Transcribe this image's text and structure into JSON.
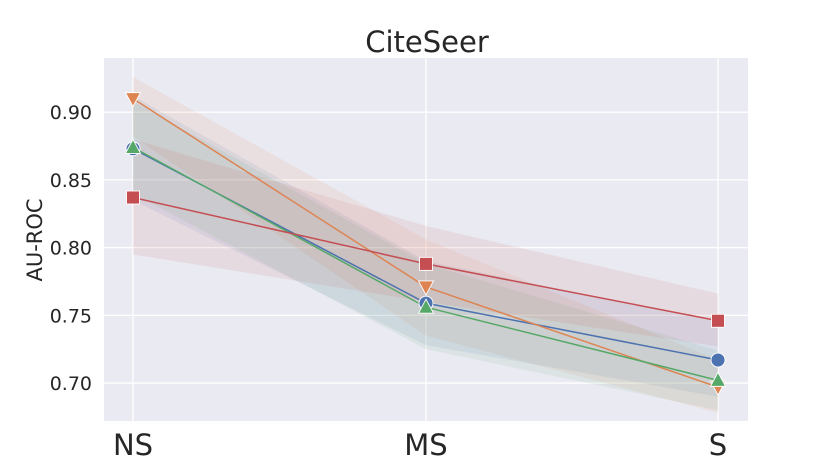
{
  "chart_data": {
    "type": "line",
    "title": "CiteSeer",
    "xlabel": "",
    "ylabel": "AU-ROC",
    "categories": [
      "NS",
      "MS",
      "S"
    ],
    "ylim": [
      0.672,
      0.94
    ],
    "yticks": [
      0.7,
      0.75,
      0.8,
      0.85,
      0.9
    ],
    "ytick_labels": [
      "0.70",
      "0.75",
      "0.80",
      "0.85",
      "0.90"
    ],
    "grid": true,
    "legend": "none",
    "series": [
      {
        "name": "blue",
        "color": "#4c72b0",
        "marker": "circle",
        "values": [
          0.873,
          0.759,
          0.717
        ],
        "lower": [
          0.835,
          0.728,
          0.69
        ],
        "upper": [
          0.912,
          0.79,
          0.745
        ]
      },
      {
        "name": "orange",
        "color": "#dd8452",
        "marker": "triangle-down",
        "values": [
          0.91,
          0.771,
          0.697
        ],
        "lower": [
          0.882,
          0.735,
          0.678
        ],
        "upper": [
          0.926,
          0.806,
          0.717
        ]
      },
      {
        "name": "green",
        "color": "#55a868",
        "marker": "triangle-up",
        "values": [
          0.874,
          0.756,
          0.702
        ],
        "lower": [
          0.84,
          0.725,
          0.68
        ],
        "upper": [
          0.908,
          0.788,
          0.724
        ]
      },
      {
        "name": "red",
        "color": "#c44e52",
        "marker": "square",
        "values": [
          0.837,
          0.788,
          0.746
        ],
        "lower": [
          0.795,
          0.76,
          0.727
        ],
        "upper": [
          0.88,
          0.816,
          0.766
        ]
      }
    ]
  }
}
